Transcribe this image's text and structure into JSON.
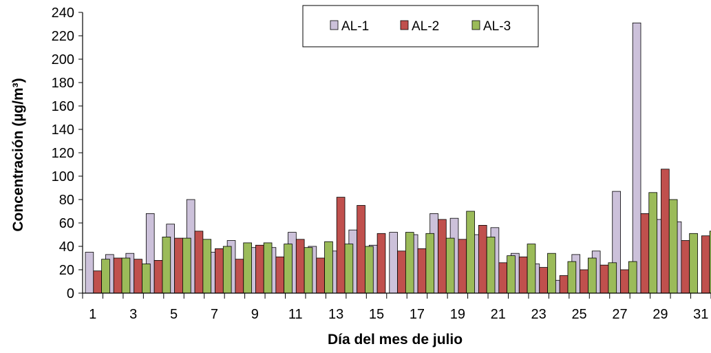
{
  "chart_data": {
    "type": "bar",
    "title": "",
    "xlabel": "Día del mes de julio",
    "ylabel": "Concentración (µg/m³)",
    "ylim": [
      0,
      240
    ],
    "yticks": [
      0,
      20,
      40,
      60,
      80,
      100,
      120,
      140,
      160,
      180,
      200,
      220,
      240
    ],
    "xtick_labels": [
      "1",
      "3",
      "5",
      "7",
      "9",
      "11",
      "13",
      "15",
      "17",
      "19",
      "21",
      "23",
      "25",
      "27",
      "29",
      "31"
    ],
    "categories": [
      1,
      2,
      3,
      4,
      5,
      6,
      7,
      8,
      9,
      10,
      11,
      12,
      13,
      14,
      15,
      16,
      17,
      18,
      19,
      20,
      21,
      22,
      23,
      24,
      25,
      26,
      27,
      28,
      29,
      30,
      31
    ],
    "grid": false,
    "legend_position": "top-right",
    "series": [
      {
        "name": "AL-1",
        "color": "#ccc1da",
        "values": [
          35,
          33,
          34,
          68,
          59,
          80,
          35,
          45,
          39,
          39,
          52,
          40,
          36,
          54,
          41,
          52,
          50,
          68,
          64,
          50,
          56,
          34,
          25,
          11,
          33,
          36,
          87,
          231,
          63,
          61,
          null
        ]
      },
      {
        "name": "AL-2",
        "color": "#c0504d",
        "values": [
          19,
          30,
          29,
          28,
          47,
          53,
          38,
          29,
          41,
          31,
          46,
          30,
          82,
          75,
          51,
          36,
          38,
          63,
          46,
          58,
          26,
          31,
          22,
          15,
          20,
          24,
          20,
          68,
          106,
          45,
          49
        ]
      },
      {
        "name": "AL-3",
        "color": "#9bbb59",
        "values": [
          29,
          30,
          25,
          48,
          47,
          46,
          40,
          43,
          43,
          42,
          39,
          44,
          42,
          40,
          null,
          52,
          51,
          47,
          70,
          48,
          32,
          42,
          34,
          27,
          30,
          26,
          27,
          86,
          80,
          51,
          53
        ]
      }
    ]
  }
}
